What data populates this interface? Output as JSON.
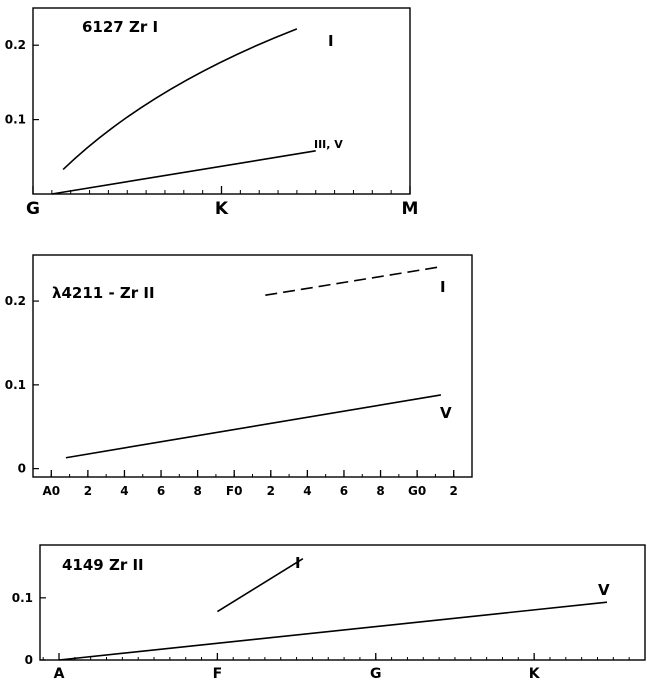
{
  "chart_data": [
    {
      "type": "line",
      "title": "6127 Zr I",
      "x_type": "spectral-class",
      "x_ticks": [
        "G",
        "K",
        "M"
      ],
      "xlim": [
        0,
        2
      ],
      "ylim": [
        0,
        0.25
      ],
      "y_ticks": [
        "0.1",
        "0.2"
      ],
      "y_tick_values": [
        0.1,
        0.2
      ],
      "grid": false,
      "series": [
        {
          "name": "I",
          "style": "solid",
          "curve": true,
          "x": [
            0.16,
            0.5,
            0.9,
            1.4
          ],
          "y": [
            0.033,
            0.09,
            0.15,
            0.222
          ]
        },
        {
          "name": "III, V",
          "style": "solid",
          "x": [
            0.1,
            1.5
          ],
          "y": [
            0.0,
            0.058
          ]
        }
      ]
    },
    {
      "type": "line",
      "title": "λ4211 - Zr II",
      "x_type": "spectral-subclass",
      "x_ticks": [
        "A0",
        "2",
        "4",
        "6",
        "8",
        "F0",
        "2",
        "4",
        "6",
        "8",
        "G0",
        "2"
      ],
      "x_tick_values": [
        0,
        2,
        4,
        6,
        8,
        10,
        12,
        14,
        16,
        18,
        20,
        22
      ],
      "xlim": [
        -1,
        23
      ],
      "ylim": [
        -0.01,
        0.255
      ],
      "y_ticks": [
        "0",
        "0.1",
        "0.2"
      ],
      "y_tick_values": [
        0,
        0.1,
        0.2
      ],
      "grid": false,
      "series": [
        {
          "name": "I",
          "style": "dashed",
          "x": [
            11.7,
            21.3
          ],
          "y": [
            0.207,
            0.241
          ]
        },
        {
          "name": "V",
          "style": "solid",
          "x": [
            0.8,
            21.3
          ],
          "y": [
            0.013,
            0.088
          ]
        }
      ]
    },
    {
      "type": "line",
      "title": "4149 Zr II",
      "x_type": "spectral-class",
      "x_ticks": [
        "A",
        "F",
        "G",
        "K"
      ],
      "xlim": [
        -0.12,
        3.7
      ],
      "ylim": [
        0,
        0.185
      ],
      "y_ticks": [
        "0",
        "0.1"
      ],
      "y_tick_values": [
        0,
        0.1
      ],
      "grid": false,
      "series": [
        {
          "name": "I",
          "style": "solid",
          "x": [
            1.0,
            1.54
          ],
          "y": [
            0.078,
            0.163
          ]
        },
        {
          "name": "V",
          "style": "solid",
          "x": [
            0.0,
            3.46
          ],
          "y": [
            0.0,
            0.093
          ]
        }
      ]
    }
  ]
}
